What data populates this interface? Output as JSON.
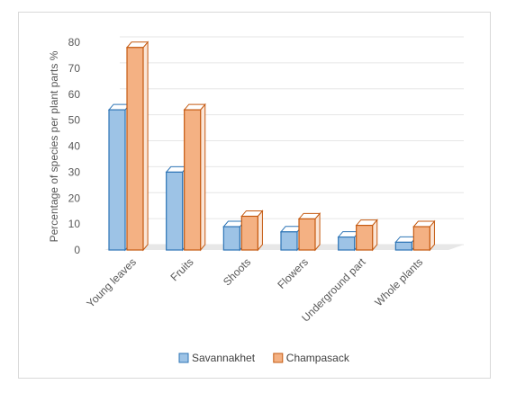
{
  "chart_data": {
    "type": "bar",
    "title": "",
    "xlabel": "",
    "ylabel": "Percentage of species per plant parts %",
    "ylim": [
      0,
      80
    ],
    "yticks": [
      0,
      10,
      20,
      30,
      40,
      50,
      60,
      70,
      80
    ],
    "grid": true,
    "style": "3d-clustered-column",
    "legend_position": "bottom",
    "categories": [
      "Young leaves",
      "Fruits",
      "Shoots",
      "Flowers",
      "Underground part",
      "Whole plants"
    ],
    "series": [
      {
        "name": "Savannakhet",
        "color": "#9dc3e6",
        "edge": "#2e75b6",
        "values": [
          54,
          30,
          9,
          7,
          5,
          3
        ]
      },
      {
        "name": "Champasack",
        "color": "#f4b183",
        "edge": "#c55a11",
        "values": [
          78,
          54,
          13,
          12,
          9.5,
          9
        ]
      }
    ]
  }
}
